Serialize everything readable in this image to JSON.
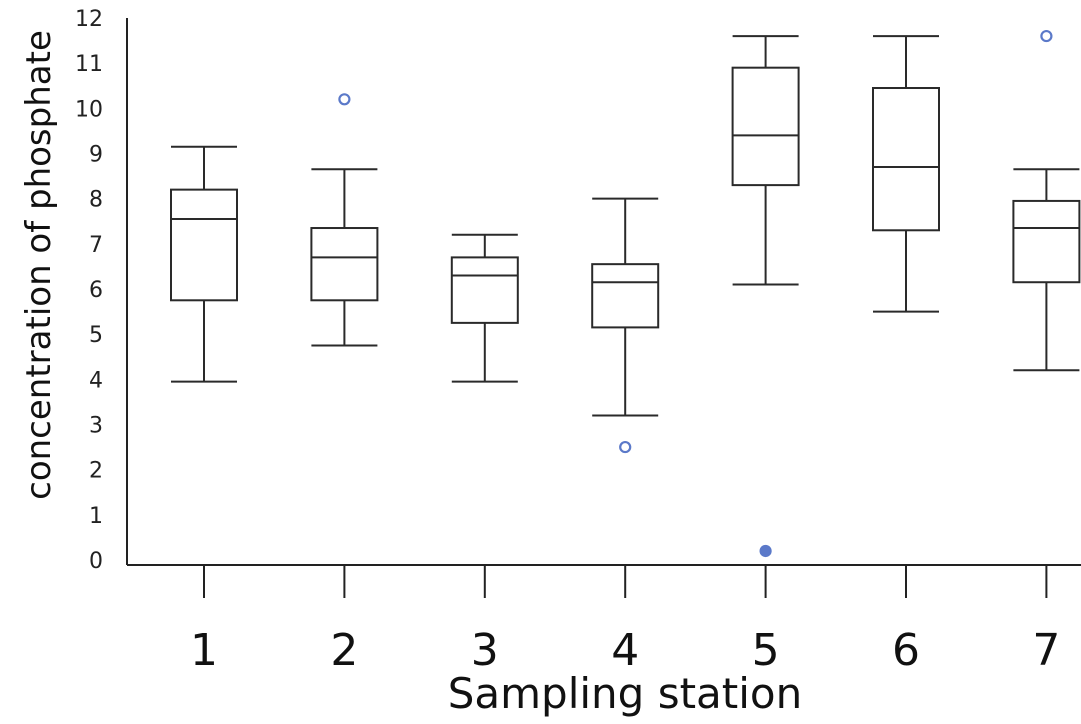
{
  "chart_data": {
    "type": "boxplot",
    "xlabel": "Sampling station",
    "ylabel": "concentration of phosphate",
    "ylim": [
      0,
      12
    ],
    "yticks": [
      0,
      1,
      2,
      3,
      4,
      5,
      6,
      7,
      8,
      9,
      10,
      11,
      12
    ],
    "categories": [
      "1",
      "2",
      "3",
      "4",
      "5",
      "6",
      "7"
    ],
    "boxes": [
      {
        "category": "1",
        "whisker_low": 3.95,
        "q1": 5.75,
        "median": 7.55,
        "q3": 8.2,
        "whisker_high": 9.15,
        "outliers": []
      },
      {
        "category": "2",
        "whisker_low": 4.75,
        "q1": 5.75,
        "median": 6.7,
        "q3": 7.35,
        "whisker_high": 8.65,
        "outliers": [
          10.2
        ]
      },
      {
        "category": "3",
        "whisker_low": 3.95,
        "q1": 5.25,
        "median": 6.3,
        "q3": 6.7,
        "whisker_high": 7.2,
        "outliers": []
      },
      {
        "category": "4",
        "whisker_low": 3.2,
        "q1": 5.15,
        "median": 6.15,
        "q3": 6.55,
        "whisker_high": 8.0,
        "outliers": [
          2.5
        ]
      },
      {
        "category": "5",
        "whisker_low": 6.1,
        "q1": 8.3,
        "median": 9.4,
        "q3": 10.9,
        "whisker_high": 11.6,
        "outliers": [
          0.2
        ]
      },
      {
        "category": "6",
        "whisker_low": 5.5,
        "q1": 7.3,
        "median": 8.7,
        "q3": 10.45,
        "whisker_high": 11.6,
        "outliers": []
      },
      {
        "category": "7",
        "whisker_low": 4.2,
        "q1": 6.15,
        "median": 7.35,
        "q3": 7.95,
        "whisker_high": 8.65,
        "outliers": [
          11.6
        ]
      }
    ],
    "grid": false,
    "legend": "none"
  },
  "colors": {
    "axis": "#222222",
    "box_stroke": "#2a2a2a",
    "outlier": "#5b79c9"
  }
}
